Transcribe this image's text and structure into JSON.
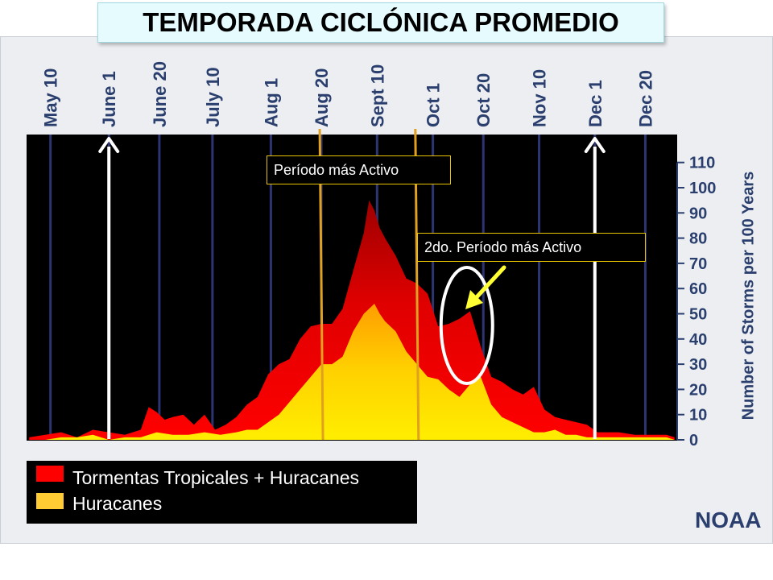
{
  "title": "TEMPORADA CICLÓNICA PROMEDIO",
  "callouts": {
    "peak": "Período más Activo",
    "second_peak": "2do. Período más Activo"
  },
  "legend": {
    "ts_plus_hurricanes": "Tormentas Tropicales + Huracanes",
    "hurricanes": "Huracanes"
  },
  "source": "NOAA",
  "chart_data": {
    "type": "area",
    "title": "TEMPORADA CICLÓNICA PROMEDIO",
    "ylabel": "Number of Storms per 100 Years",
    "ylim": [
      0,
      115
    ],
    "yticks": [
      0,
      10,
      20,
      30,
      40,
      50,
      60,
      70,
      80,
      90,
      100,
      110
    ],
    "x_range": [
      "May 1",
      "Dec 31"
    ],
    "xtick_labels": [
      "May 10",
      "June 1",
      "June 20",
      "July 10",
      "Aug 1",
      "Aug 20",
      "Sept 10",
      "Oct 1",
      "Oct 20",
      "Nov 10",
      "Dec 1",
      "Dec 20"
    ],
    "xtick_day_of_year": [
      130,
      152,
      171,
      191,
      213,
      232,
      253,
      274,
      293,
      314,
      335,
      354
    ],
    "season_markers": [
      "June 1",
      "Dec 1"
    ],
    "most_active_period": [
      "Aug 20",
      "Sept 25"
    ],
    "second_active_circle_day": 288,
    "grid": true,
    "legend_position": "bottom-left",
    "colors": {
      "background": "#000000",
      "gridlines": "#2c3570",
      "ts_plus_hurricanes": "#ff0000",
      "ts_plus_hurricanes_peak": "#990000",
      "hurricanes": "#ffee00",
      "hurricanes_peak": "#ff9900",
      "season_arrows": "#ffffff",
      "period_lines": "#e0a020",
      "second_peak_arrow": "#ffff33",
      "circle": "#ffffff",
      "axis_text": "#2a3f6e"
    },
    "series": [
      {
        "name": "Tormentas Tropicales + Huracanes",
        "x": [
          122,
          128,
          134,
          140,
          146,
          152,
          158,
          164,
          167,
          170,
          173,
          176,
          180,
          184,
          188,
          192,
          196,
          200,
          204,
          208,
          212,
          216,
          220,
          224,
          228,
          232,
          236,
          240,
          244,
          248,
          250,
          252,
          254,
          256,
          260,
          264,
          268,
          272,
          276,
          280,
          284,
          288,
          292,
          296,
          300,
          304,
          308,
          312,
          316,
          320,
          324,
          328,
          332,
          336,
          340,
          344,
          350,
          356,
          362,
          365
        ],
        "y": [
          1,
          2,
          3,
          1,
          4,
          3,
          2,
          4,
          13,
          11,
          8,
          9,
          10,
          6,
          10,
          4,
          6,
          9,
          14,
          17,
          26,
          30,
          32,
          40,
          45,
          46,
          46,
          52,
          67,
          82,
          95,
          91,
          84,
          80,
          73,
          64,
          62,
          58,
          45,
          46,
          48,
          51,
          37,
          25,
          23,
          20,
          18,
          21,
          12,
          9,
          8,
          7,
          6,
          3,
          3,
          3,
          2,
          2,
          2,
          1
        ]
      },
      {
        "name": "Huracanes",
        "x": [
          122,
          128,
          134,
          140,
          146,
          152,
          158,
          164,
          170,
          176,
          182,
          188,
          194,
          200,
          204,
          208,
          212,
          216,
          220,
          224,
          228,
          232,
          236,
          240,
          244,
          248,
          250,
          252,
          254,
          256,
          260,
          264,
          268,
          272,
          276,
          280,
          284,
          288,
          292,
          296,
          300,
          304,
          308,
          312,
          316,
          320,
          324,
          328,
          332,
          336,
          340,
          344,
          350,
          356,
          362,
          365
        ],
        "y": [
          0,
          0,
          1,
          1,
          2,
          0,
          1,
          1,
          3,
          2,
          2,
          3,
          2,
          3,
          4,
          4,
          7,
          10,
          15,
          20,
          25,
          30,
          30,
          33,
          43,
          50,
          52,
          54,
          50,
          47,
          43,
          35,
          30,
          25,
          24,
          20,
          17,
          22,
          25,
          14,
          9,
          7,
          5,
          3,
          3,
          4,
          2,
          2,
          1,
          1,
          1,
          1,
          1,
          1,
          1,
          0
        ]
      }
    ]
  }
}
